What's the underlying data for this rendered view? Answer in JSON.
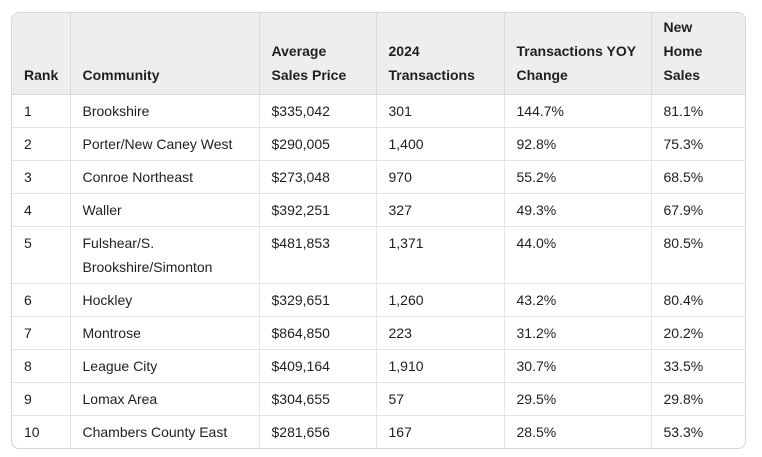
{
  "table": {
    "headers": [
      "Rank",
      "Community",
      "Average Sales Price",
      "2024 Transactions",
      "Transactions YOY Change",
      "New Home Sales"
    ],
    "rows": [
      [
        "1",
        "Brookshire",
        "$335,042",
        "301",
        "144.7%",
        "81.1%"
      ],
      [
        "2",
        "Porter/New Caney West",
        "$290,005",
        "1,400",
        "92.8%",
        "75.3%"
      ],
      [
        "3",
        "Conroe Northeast",
        "$273,048",
        "970",
        "55.2%",
        "68.5%"
      ],
      [
        "4",
        "Waller",
        "$392,251",
        "327",
        "49.3%",
        "67.9%"
      ],
      [
        "5",
        "Fulshear/S. Brookshire/Simonton",
        "$481,853",
        "1,371",
        "44.0%",
        "80.5%"
      ],
      [
        "6",
        "Hockley",
        "$329,651",
        "1,260",
        "43.2%",
        "80.4%"
      ],
      [
        "7",
        "Montrose",
        "$864,850",
        "223",
        "31.2%",
        "20.2%"
      ],
      [
        "8",
        "League City",
        "$409,164",
        "1,910",
        "30.7%",
        "33.5%"
      ],
      [
        "9",
        "Lomax Area",
        "$304,655",
        "57",
        "29.5%",
        "29.8%"
      ],
      [
        "10",
        "Chambers County East",
        "$281,656",
        "167",
        "28.5%",
        "53.3%"
      ]
    ]
  }
}
